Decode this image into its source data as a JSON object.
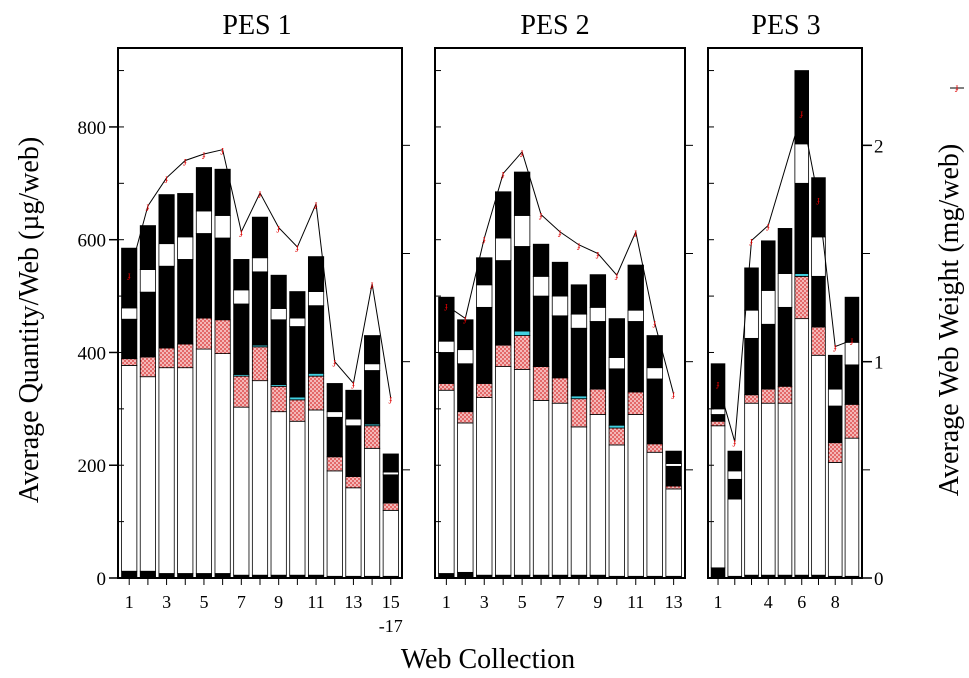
{
  "chart_data": {
    "type": "bar",
    "stacked": true,
    "xlabel": "Web Collection",
    "ylabel_left": "Average Quantity/Web (µg/web)",
    "ylabel_right": "Average Web Weight (mg/web)",
    "ylim_left": [
      0,
      940
    ],
    "ylim_right": [
      0,
      2.45
    ],
    "yticks_left": [
      0,
      200,
      400,
      600,
      800
    ],
    "yticks_right": [
      0,
      1,
      2
    ],
    "legend_glyph": "ɟ",
    "layers": [
      "black-base",
      "white-lower",
      "red-dotted",
      "cyan-line",
      "black-lower",
      "white-band",
      "black-top"
    ],
    "panels": [
      {
        "title": "PES 1",
        "xtick_labels": [
          {
            "pos": 1,
            "text": "1"
          },
          {
            "pos": 3,
            "text": "3"
          },
          {
            "pos": 5,
            "text": "5"
          },
          {
            "pos": 7,
            "text": "7"
          },
          {
            "pos": 9,
            "text": "9"
          },
          {
            "pos": 11,
            "text": "11"
          },
          {
            "pos": 13,
            "text": "13"
          },
          {
            "pos": 15,
            "text": "15"
          }
        ],
        "xtick_sublabel": "-17",
        "n": 15,
        "stacks": [
          [
            12,
            365,
            12,
            0,
            70,
            20,
            106
          ],
          [
            12,
            345,
            35,
            0,
            115,
            40,
            78
          ],
          [
            8,
            365,
            35,
            0,
            145,
            40,
            87
          ],
          [
            8,
            365,
            42,
            0,
            150,
            40,
            77
          ],
          [
            8,
            398,
            55,
            0,
            150,
            40,
            77
          ],
          [
            8,
            390,
            60,
            0,
            145,
            40,
            82
          ],
          [
            5,
            298,
            55,
            3,
            125,
            25,
            54
          ],
          [
            5,
            345,
            60,
            3,
            130,
            25,
            72
          ],
          [
            5,
            290,
            45,
            3,
            115,
            20,
            59
          ],
          [
            5,
            273,
            38,
            5,
            125,
            15,
            47
          ],
          [
            5,
            293,
            60,
            5,
            120,
            25,
            62
          ],
          [
            3,
            187,
            25,
            0,
            70,
            10,
            50
          ],
          [
            3,
            157,
            20,
            0,
            90,
            12,
            51
          ],
          [
            3,
            227,
            40,
            3,
            95,
            12,
            50
          ],
          [
            3,
            117,
            13,
            0,
            50,
            5,
            32
          ]
        ],
        "web_weight": [
          1.4,
          1.72,
          1.85,
          1.93,
          1.96,
          1.98,
          1.6,
          1.78,
          1.62,
          1.53,
          1.73,
          1.0,
          0.9,
          1.36,
          0.83
        ]
      },
      {
        "title": "PES 2",
        "xtick_labels": [
          {
            "pos": 1,
            "text": "1"
          },
          {
            "pos": 3,
            "text": "3"
          },
          {
            "pos": 5,
            "text": "5"
          },
          {
            "pos": 7,
            "text": "7"
          },
          {
            "pos": 9,
            "text": "9"
          },
          {
            "pos": 11,
            "text": "11"
          },
          {
            "pos": 13,
            "text": "13"
          }
        ],
        "n": 13,
        "stacks": [
          [
            8,
            325,
            12,
            0,
            55,
            20,
            78
          ],
          [
            10,
            265,
            20,
            0,
            85,
            25,
            53
          ],
          [
            5,
            315,
            25,
            0,
            135,
            40,
            48
          ],
          [
            5,
            370,
            38,
            0,
            150,
            40,
            82
          ],
          [
            5,
            365,
            60,
            8,
            150,
            55,
            77
          ],
          [
            5,
            310,
            60,
            0,
            125,
            35,
            57
          ],
          [
            5,
            305,
            45,
            0,
            110,
            35,
            60
          ],
          [
            5,
            263,
            50,
            5,
            120,
            25,
            52
          ],
          [
            5,
            285,
            45,
            0,
            120,
            25,
            58
          ],
          [
            3,
            233,
            30,
            5,
            100,
            20,
            69
          ],
          [
            3,
            287,
            40,
            0,
            125,
            20,
            80
          ],
          [
            3,
            220,
            15,
            0,
            115,
            20,
            57
          ],
          [
            3,
            155,
            5,
            0,
            35,
            5,
            22
          ]
        ],
        "web_weight": [
          1.26,
          1.2,
          1.57,
          1.87,
          1.97,
          1.68,
          1.6,
          1.54,
          1.5,
          1.4,
          1.6,
          1.18,
          0.85
        ]
      },
      {
        "title": "PES 3",
        "xtick_labels": [
          {
            "pos": 1,
            "text": "1"
          },
          {
            "pos": 4,
            "text": "4"
          },
          {
            "pos": 6,
            "text": "6"
          },
          {
            "pos": 8,
            "text": "8"
          }
        ],
        "n": 9,
        "stacks": [
          [
            18,
            252,
            8,
            0,
            12,
            10,
            80
          ],
          [
            3,
            137,
            0,
            0,
            35,
            15,
            35
          ],
          [
            5,
            305,
            15,
            0,
            100,
            50,
            75
          ],
          [
            5,
            305,
            25,
            0,
            115,
            60,
            88
          ],
          [
            5,
            455,
            75,
            5,
            160,
            70,
            130
          ],
          [
            5,
            390,
            50,
            0,
            90,
            70,
            105
          ],
          [
            3,
            202,
            35,
            0,
            65,
            30,
            60
          ],
          [
            3,
            245,
            60,
            0,
            70,
            40,
            80
          ]
        ],
        "stack_positions": [
          1,
          2,
          3,
          4,
          6,
          7,
          8,
          9
        ],
        "extra_bar": {
          "pos": 5,
          "stack": [
            5,
            305,
            30,
            0,
            140,
            60,
            80
          ]
        },
        "web_weight": [
          0.9,
          0.63,
          1.56,
          1.63,
          2.15,
          1.75,
          1.07,
          1.1
        ]
      }
    ]
  }
}
